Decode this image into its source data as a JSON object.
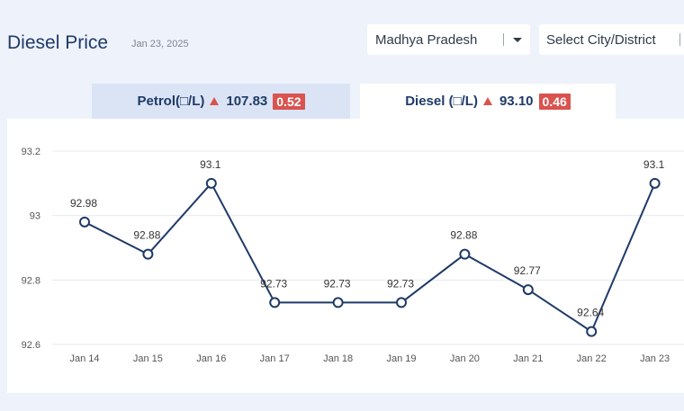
{
  "header": {
    "title": "Diesel Price",
    "date": "Jan 23, 2025"
  },
  "filters": {
    "state_value": "Madhya Pradesh",
    "city_placeholder": "Select City/District"
  },
  "tabs": [
    {
      "label": "Petrol(□/L)",
      "price": "107.83",
      "change": "0.52",
      "trend": "up"
    },
    {
      "label": "Diesel (□/L)",
      "price": "93.10",
      "change": "0.46",
      "trend": "up",
      "active": true
    }
  ],
  "colors": {
    "line": "#1f3a68",
    "up_badge": "#d9534f",
    "active_tab": "#ffffff",
    "inactive_tab": "#dae4f5"
  },
  "chart_data": {
    "type": "line",
    "categories": [
      "Jan 14",
      "Jan 15",
      "Jan 16",
      "Jan 17",
      "Jan 18",
      "Jan 19",
      "Jan 20",
      "Jan 21",
      "Jan 22",
      "Jan 23"
    ],
    "values": [
      92.98,
      92.88,
      93.1,
      92.73,
      92.73,
      92.73,
      92.88,
      92.77,
      92.64,
      93.1
    ],
    "point_labels": [
      "92.98",
      "92.88",
      "93.1",
      "92.73",
      "92.73",
      "92.73",
      "92.88",
      "92.77",
      "92.64",
      "93.1"
    ],
    "y_ticks": [
      92.6,
      92.8,
      93,
      93.2
    ],
    "y_tick_labels": [
      "92.6",
      "92.8",
      "93",
      "93.2"
    ],
    "ylim": [
      92.6,
      93.2
    ],
    "grid": true
  }
}
